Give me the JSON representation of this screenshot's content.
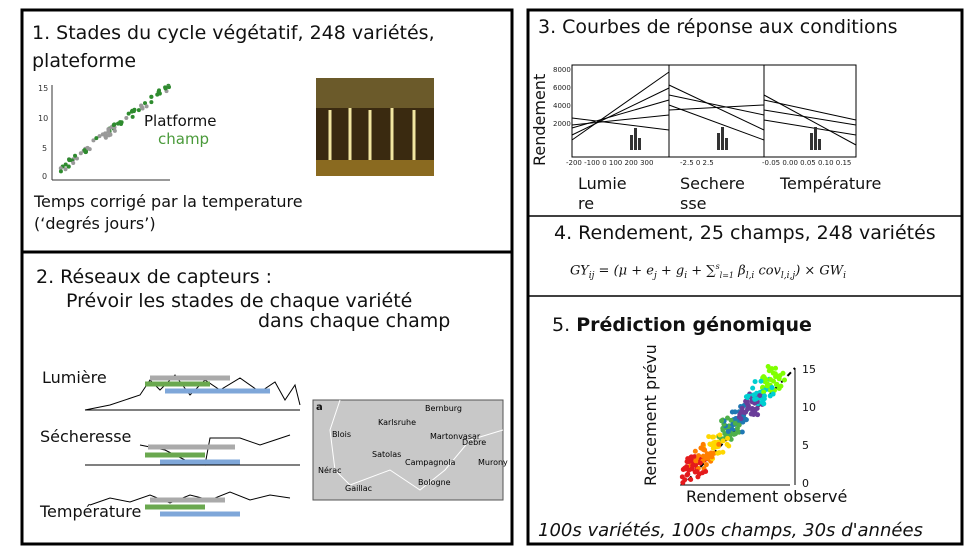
{
  "panel1": {
    "title_lines": [
      "1. Stades du cycle végétatif, 248 variétés,",
      "plateforme"
    ],
    "legend": [
      "Platforme",
      "champ"
    ],
    "yticks": [
      "15",
      "10",
      "5",
      "0"
    ],
    "caption_lines": [
      "Temps corrigé par la temperature",
      "(‘degrés jours’)"
    ]
  },
  "panel2": {
    "title": "2. Réseaux de capteurs :",
    "subtitle_lines": [
      "Prévoir les stades de chaque variété",
      "dans chaque champ"
    ],
    "signals": [
      "Lumière",
      "Sécheresse",
      "Température"
    ],
    "map": {
      "label": "a",
      "sites": [
        "Bernburg",
        "Karlsruhe",
        "Blois",
        "Satolas",
        "Martonvasar",
        "Debre",
        "Nérac",
        "Gaillac",
        "Campagnola",
        "Bologne",
        "Murony"
      ]
    }
  },
  "panel3": {
    "title": "3. Courbes de réponse aux conditions",
    "ylabel": "Rendement",
    "yticks": [
      "8000",
      "6000",
      "4000",
      "2000"
    ],
    "plots": [
      {
        "label_lines": [
          "Lumie",
          "re"
        ],
        "xticks": "-200 -100 0 100 200 300"
      },
      {
        "label_lines": [
          "Sechere",
          "sse"
        ],
        "xticks": "-2.5 0 2.5"
      },
      {
        "label_lines": [
          "Température"
        ],
        "xticks": "-0.05 0.00 0.05 0.10 0.15"
      }
    ]
  },
  "panel4": {
    "title": "4. Rendement, 25 champs, 248 variétés",
    "formula": [
      {
        "t": "GY",
        "sub": "ij"
      },
      {
        "t": " = (μ + e",
        "sub": "j"
      },
      {
        "t": " + g",
        "sub": "i"
      },
      {
        "t": " + ∑",
        "sup": "s",
        "under": "l=1"
      },
      {
        "t": " β",
        "sub": "l,i"
      },
      {
        "t": " cov",
        "sub": "l,i,j"
      },
      {
        "t": ") × GW",
        "sub": "i"
      }
    ]
  },
  "panel5": {
    "number": "5.",
    "title": "Prédiction génomique",
    "ylabel": "Rencement prévu",
    "xlabel": "Rendement observé",
    "yticks": [
      "15",
      "10",
      "5",
      "0"
    ],
    "footer": "100s variétés, 100s champs, 30s d'années"
  }
}
